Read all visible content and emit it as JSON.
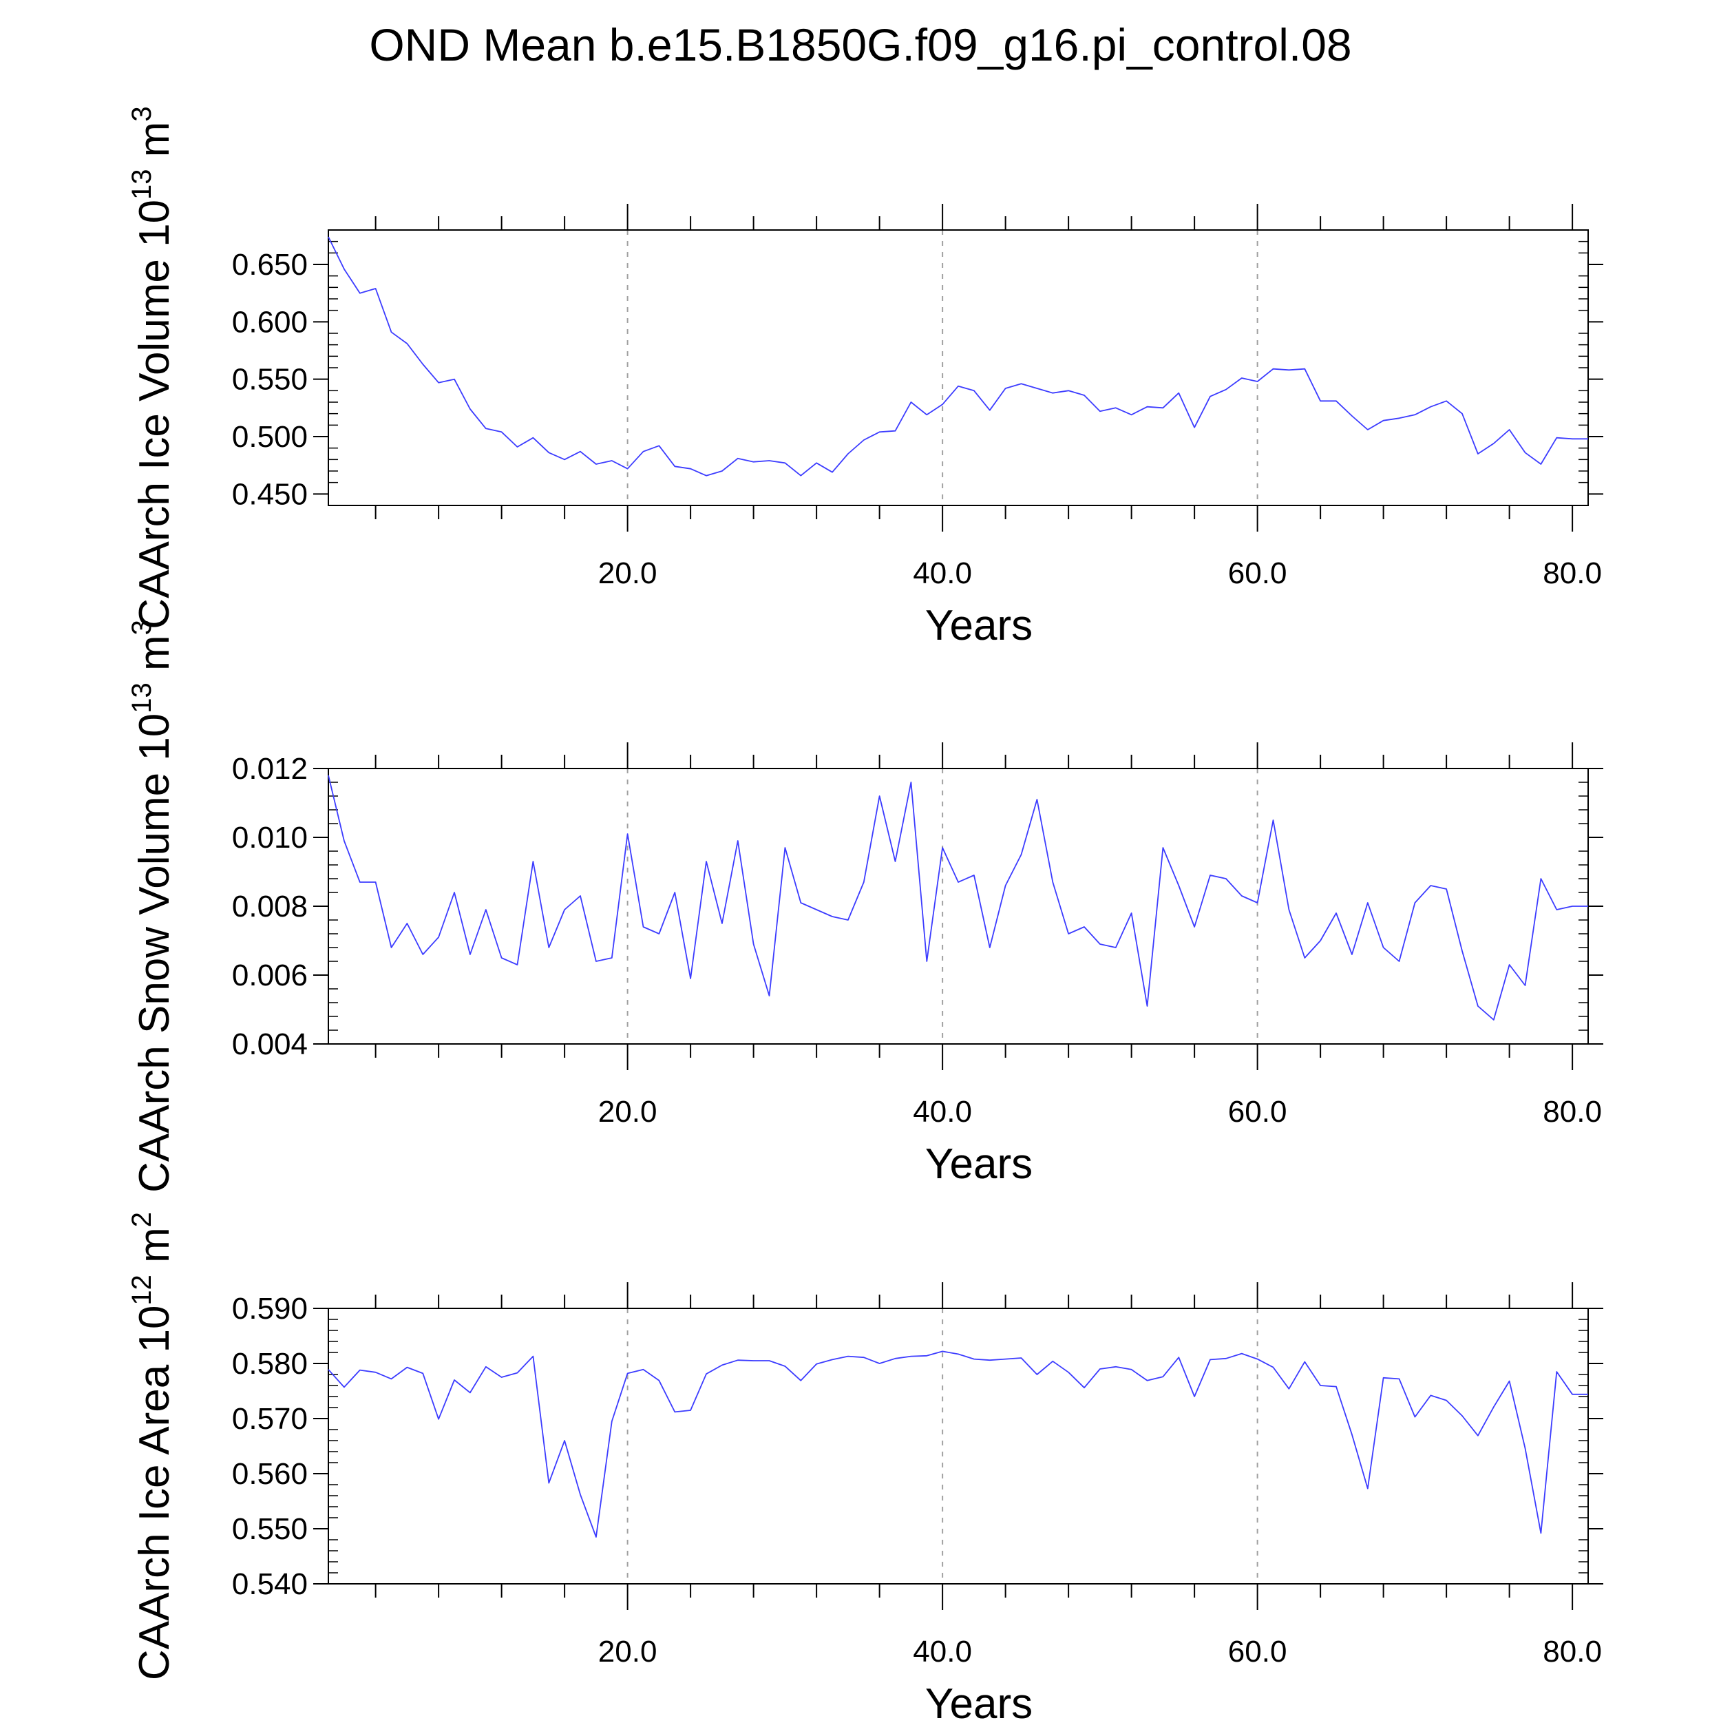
{
  "title": "OND Mean b.e15.B1850G.f09_g16.pi_control.08",
  "colors": {
    "series": "#3c3cff",
    "axis": "#000000",
    "grid": "#a0a0a0",
    "background": "#ffffff"
  },
  "chart_data": [
    {
      "type": "line",
      "ylabel": "CAArch Ice Volume 10^13 m^3",
      "ylabel_parts": {
        "main": "CAArch Ice Volume 10",
        "exp1": "13",
        "unit": " m",
        "exp2": "3"
      },
      "xlabel": "Years",
      "xlim": [
        1,
        81
      ],
      "ylim": [
        0.44,
        0.68
      ],
      "xticks": [
        20,
        40,
        60,
        80
      ],
      "xtick_labels": [
        "20.0",
        "40.0",
        "60.0",
        "80.0"
      ],
      "yticks": [
        0.45,
        0.5,
        0.55,
        0.6,
        0.65
      ],
      "ytick_labels": [
        "0.450",
        "0.500",
        "0.550",
        "0.600",
        "0.650"
      ],
      "vertical_grid": [
        20,
        40,
        60
      ],
      "x": [
        1,
        2,
        3,
        4,
        5,
        6,
        7,
        8,
        9,
        10,
        11,
        12,
        13,
        14,
        15,
        16,
        17,
        18,
        19,
        20,
        21,
        22,
        23,
        24,
        25,
        26,
        27,
        28,
        29,
        30,
        31,
        32,
        33,
        34,
        35,
        36,
        37,
        38,
        39,
        40,
        41,
        42,
        43,
        44,
        45,
        46,
        47,
        48,
        49,
        50,
        51,
        52,
        53,
        54,
        55,
        56,
        57,
        58,
        59,
        60,
        61,
        62,
        63,
        64,
        65,
        66,
        67,
        68,
        69,
        70,
        71,
        72,
        73,
        74,
        75,
        76,
        77,
        78,
        79,
        80,
        81
      ],
      "values": [
        0.674,
        0.646,
        0.625,
        0.629,
        0.591,
        0.581,
        0.563,
        0.547,
        0.55,
        0.524,
        0.507,
        0.504,
        0.491,
        0.499,
        0.486,
        0.48,
        0.487,
        0.476,
        0.479,
        0.472,
        0.487,
        0.492,
        0.474,
        0.472,
        0.466,
        0.47,
        0.481,
        0.478,
        0.479,
        0.477,
        0.466,
        0.477,
        0.469,
        0.485,
        0.497,
        0.504,
        0.505,
        0.53,
        0.519,
        0.528,
        0.544,
        0.54,
        0.523,
        0.542,
        0.546,
        0.542,
        0.538,
        0.54,
        0.536,
        0.522,
        0.525,
        0.519,
        0.526,
        0.525,
        0.538,
        0.508,
        0.535,
        0.541,
        0.551,
        0.548,
        0.559,
        0.558,
        0.559,
        0.531,
        0.531,
        0.518,
        0.506,
        0.514,
        0.516,
        0.519,
        0.526,
        0.531,
        0.52,
        0.485,
        0.494,
        0.506,
        0.486,
        0.476,
        0.499,
        0.498,
        0.498
      ]
    },
    {
      "type": "line",
      "ylabel": "CAArch Snow Volume 10^13 m^3",
      "ylabel_parts": {
        "main": "CAArch Snow Volume 10",
        "exp1": "13",
        "unit": " m",
        "exp2": "3"
      },
      "xlabel": "Years",
      "xlim": [
        1,
        81
      ],
      "ylim": [
        0.004,
        0.012
      ],
      "xticks": [
        20,
        40,
        60,
        80
      ],
      "xtick_labels": [
        "20.0",
        "40.0",
        "60.0",
        "80.0"
      ],
      "yticks": [
        0.004,
        0.006,
        0.008,
        0.01,
        0.012
      ],
      "ytick_labels": [
        "0.004",
        "0.006",
        "0.008",
        "0.010",
        "0.012"
      ],
      "vertical_grid": [
        20,
        40,
        60
      ],
      "x": [
        1,
        2,
        3,
        4,
        5,
        6,
        7,
        8,
        9,
        10,
        11,
        12,
        13,
        14,
        15,
        16,
        17,
        18,
        19,
        20,
        21,
        22,
        23,
        24,
        25,
        26,
        27,
        28,
        29,
        30,
        31,
        32,
        33,
        34,
        35,
        36,
        37,
        38,
        39,
        40,
        41,
        42,
        43,
        44,
        45,
        46,
        47,
        48,
        49,
        50,
        51,
        52,
        53,
        54,
        55,
        56,
        57,
        58,
        59,
        60,
        61,
        62,
        63,
        64,
        65,
        66,
        67,
        68,
        69,
        70,
        71,
        72,
        73,
        74,
        75,
        76,
        77,
        78,
        79,
        80,
        81
      ],
      "values": [
        0.0118,
        0.0099,
        0.0087,
        0.0087,
        0.0068,
        0.0075,
        0.0066,
        0.0071,
        0.0084,
        0.0066,
        0.0079,
        0.0065,
        0.0063,
        0.0093,
        0.0068,
        0.0079,
        0.0083,
        0.0064,
        0.0065,
        0.0101,
        0.0074,
        0.0072,
        0.0084,
        0.0059,
        0.0093,
        0.0075,
        0.0099,
        0.0069,
        0.0054,
        0.0097,
        0.0081,
        0.0079,
        0.0077,
        0.0076,
        0.0087,
        0.0112,
        0.0093,
        0.0116,
        0.0064,
        0.0097,
        0.0087,
        0.0089,
        0.0068,
        0.0086,
        0.0095,
        0.0111,
        0.0087,
        0.0072,
        0.0074,
        0.0069,
        0.0068,
        0.0078,
        0.0051,
        0.0097,
        0.0086,
        0.0074,
        0.0089,
        0.0088,
        0.0083,
        0.0081,
        0.0105,
        0.0079,
        0.0065,
        0.007,
        0.0078,
        0.0066,
        0.0081,
        0.0068,
        0.0064,
        0.0081,
        0.0086,
        0.0085,
        0.0067,
        0.0051,
        0.0047,
        0.0063,
        0.0057,
        0.0088,
        0.0079,
        0.008,
        0.008
      ]
    },
    {
      "type": "line",
      "ylabel": "CAArch Ice Area 10^12 m^2",
      "ylabel_parts": {
        "main": "CAArch Ice Area 10",
        "exp1": "12",
        "unit": " m",
        "exp2": "2"
      },
      "xlabel": "Years",
      "xlim": [
        1,
        81
      ],
      "ylim": [
        0.54,
        0.59
      ],
      "xticks": [
        20,
        40,
        60,
        80
      ],
      "xtick_labels": [
        "20.0",
        "40.0",
        "60.0",
        "80.0"
      ],
      "yticks": [
        0.54,
        0.55,
        0.56,
        0.57,
        0.58,
        0.59
      ],
      "ytick_labels": [
        "0.540",
        "0.550",
        "0.560",
        "0.570",
        "0.580",
        "0.590"
      ],
      "vertical_grid": [
        20,
        40,
        60
      ],
      "x": [
        1,
        2,
        3,
        4,
        5,
        6,
        7,
        8,
        9,
        10,
        11,
        12,
        13,
        14,
        15,
        16,
        17,
        18,
        19,
        20,
        21,
        22,
        23,
        24,
        25,
        26,
        27,
        28,
        29,
        30,
        31,
        32,
        33,
        34,
        35,
        36,
        37,
        38,
        39,
        40,
        41,
        42,
        43,
        44,
        45,
        46,
        47,
        48,
        49,
        50,
        51,
        52,
        53,
        54,
        55,
        56,
        57,
        58,
        59,
        60,
        61,
        62,
        63,
        64,
        65,
        66,
        67,
        68,
        69,
        70,
        71,
        72,
        73,
        74,
        75,
        76,
        77,
        78,
        79,
        80,
        81
      ],
      "values": [
        0.5789,
        0.5757,
        0.5788,
        0.5784,
        0.5772,
        0.5793,
        0.5782,
        0.5699,
        0.577,
        0.5747,
        0.5794,
        0.5775,
        0.5783,
        0.5813,
        0.5583,
        0.566,
        0.5562,
        0.5485,
        0.5695,
        0.5782,
        0.5789,
        0.5769,
        0.5712,
        0.5715,
        0.5781,
        0.5797,
        0.5806,
        0.5805,
        0.5805,
        0.5795,
        0.5769,
        0.5799,
        0.5807,
        0.5813,
        0.5811,
        0.58,
        0.5809,
        0.5813,
        0.5814,
        0.5822,
        0.5817,
        0.5808,
        0.5806,
        0.5808,
        0.581,
        0.578,
        0.5804,
        0.5784,
        0.5756,
        0.579,
        0.5794,
        0.5789,
        0.5769,
        0.5776,
        0.5811,
        0.574,
        0.5807,
        0.5809,
        0.5818,
        0.5808,
        0.5793,
        0.5754,
        0.5803,
        0.576,
        0.5758,
        0.5671,
        0.5573,
        0.5774,
        0.5772,
        0.5703,
        0.5742,
        0.5733,
        0.5705,
        0.5669,
        0.5721,
        0.5768,
        0.5646,
        0.5492,
        0.5785,
        0.5744,
        0.5744
      ]
    }
  ]
}
